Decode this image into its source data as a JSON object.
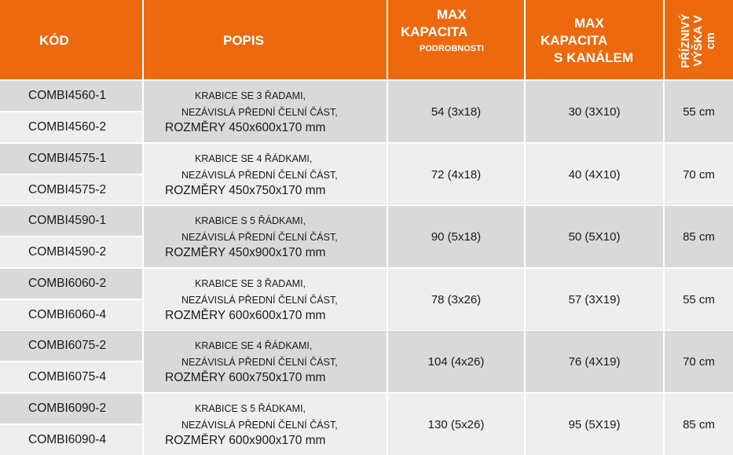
{
  "header": {
    "code": "KÓD",
    "description": "POPIS",
    "max_capacity_line1": "MAX",
    "max_capacity_line2": "KAPACITA",
    "max_capacity_line3": "PODROBNOSTI",
    "max_channel_line1": "MAX",
    "max_channel_line2": "KAPACITA",
    "max_channel_line3": "S KANÁLEM",
    "height_line1": "PŘÍZNIVÝ",
    "height_line2": "VÝŠKA V",
    "height_line3": "cm"
  },
  "colors": {
    "header_bg": "#ec6a0d",
    "header_text": "#ffffff",
    "row_shaded": "#d9d9d9",
    "row_light": "#eeeeee"
  },
  "groups": [
    {
      "codes": [
        "COMBI4560-1",
        "COMBI4560-2"
      ],
      "desc_line1": "KRABICE SE 3 ŘADAMI,",
      "desc_line2": "NEZÁVISLÁ PŘEDNÍ ČELNÍ ČÁST,",
      "desc_line3": "ROZMĚRY 450x600x170 mm",
      "max_capacity": "54 (3x18)",
      "max_channel": "30 (3X10)",
      "height": "55 cm"
    },
    {
      "codes": [
        "COMBI4575-1",
        "COMBI4575-2"
      ],
      "desc_line1": "KRABICE SE 4 ŘÁDKAMI,",
      "desc_line2": "NEZÁVISLÁ PŘEDNÍ ČELNÍ ČÁST,",
      "desc_line3": "ROZMĚRY 450x750x170 mm",
      "max_capacity": "72 (4x18)",
      "max_channel": "40 (4X10)",
      "height": "70 cm"
    },
    {
      "codes": [
        "COMBI4590-1",
        "COMBI4590-2"
      ],
      "desc_line1": "KRABICE S 5 ŘÁDKAMI,",
      "desc_line2": "NEZÁVISLÁ PŘEDNÍ ČELNÍ ČÁST,",
      "desc_line3": "ROZMĚRY 450x900x170 mm",
      "max_capacity": "90 (5x18)",
      "max_channel": "50 (5X10)",
      "height": "85 cm"
    },
    {
      "codes": [
        "COMBI6060-2",
        "COMBI6060-4"
      ],
      "desc_line1": "KRABICE SE 3 ŘADAMI,",
      "desc_line2": "NEZÁVISLÁ PŘEDNÍ ČELNÍ ČÁST,",
      "desc_line3": "ROZMĚRY 600x600x170 mm",
      "max_capacity": "78 (3x26)",
      "max_channel": "57 (3X19)",
      "height": "55 cm"
    },
    {
      "codes": [
        "COMBI6075-2",
        "COMBI6075-4"
      ],
      "desc_line1": "KRABICE SE 4 ŘÁDKAMI,",
      "desc_line2": "NEZÁVISLÁ PŘEDNÍ ČELNÍ ČÁST,",
      "desc_line3": "ROZMĚRY 600x750x170 mm",
      "max_capacity": "104 (4x26)",
      "max_channel": "76 (4X19)",
      "height": "70 cm"
    },
    {
      "codes": [
        "COMBI6090-2",
        "COMBI6090-4"
      ],
      "desc_line1": "KRABICE S 5 ŘÁDKAMI,",
      "desc_line2": "NEZÁVISLÁ PŘEDNÍ ČELNÍ ČÁST,",
      "desc_line3": "ROZMĚRY 600x900x170 mm",
      "max_capacity": "130 (5x26)",
      "max_channel": "95 (5X19)",
      "height": "85 cm"
    }
  ]
}
